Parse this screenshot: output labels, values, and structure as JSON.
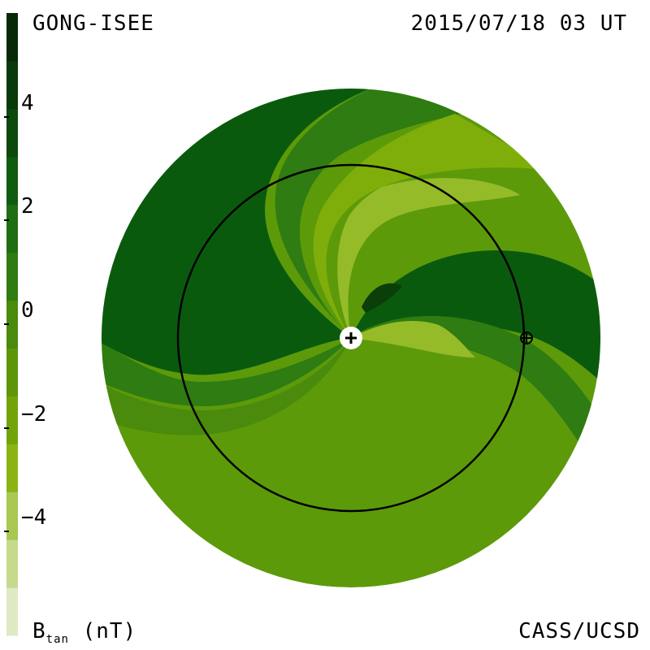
{
  "header": {
    "source": "GONG-ISEE",
    "datetime": "2015/07/18 03 UT"
  },
  "footer": {
    "credit": "CASS/UCSD",
    "unit_main": "B",
    "unit_sub": "tan",
    "unit_tail": " (nT)"
  },
  "colorbar": {
    "ticks": [
      {
        "value": 4,
        "label": "4"
      },
      {
        "value": 2,
        "label": "2"
      },
      {
        "value": 0,
        "label": "0"
      },
      {
        "value": -2,
        "label": "−2"
      },
      {
        "value": -4,
        "label": "−4"
      }
    ],
    "range": [
      -6,
      6
    ],
    "colors": [
      "#dfe9c4",
      "#c6da8e",
      "#a8c852",
      "#8cb314",
      "#72a40a",
      "#5e960a",
      "#4a8a0c",
      "#2f7c12",
      "#1f6e12",
      "#0e5c0e",
      "#0b4a0c",
      "#093a09",
      "#062a07"
    ]
  },
  "colors": {
    "dark_green": "#0a5a0e",
    "mid_green": "#2e7c12",
    "olive": "#5c9a0a",
    "light_green": "#7fae0a",
    "pale_green": "#95bb28"
  },
  "markers": [
    {
      "name": "sun",
      "icon": "plus-icon"
    },
    {
      "name": "earth",
      "icon": "earth-symbol-icon"
    }
  ]
}
